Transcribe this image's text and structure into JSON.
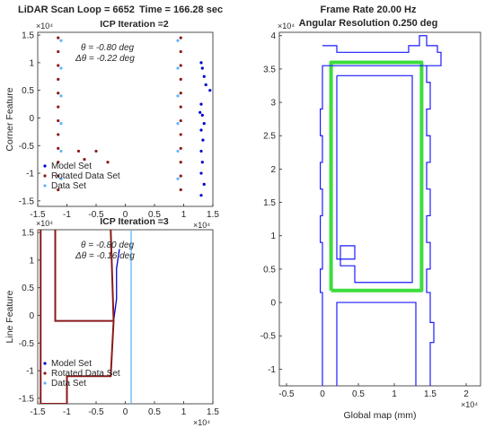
{
  "header": {
    "loop_text": "LiDAR Scan Loop = 6652",
    "time_text": "Time = 166.28 sec",
    "frame_rate_text": "Frame Rate 20.00 Hz",
    "angular_res_text": "Angular Resolution 0.250 deg"
  },
  "chart_data": [
    {
      "type": "scatter",
      "panel": "corner",
      "title": "ICP Iteration =2",
      "ylabel": "Corner Feature",
      "xlabel": "",
      "exponent_label": "×10⁴",
      "x_exponent_label": "×10⁴",
      "annotation_theta": "θ = -0.80 deg",
      "annotation_dtheta": "Δθ = -0.22 deg",
      "xlim": [
        -1.5,
        1.5
      ],
      "ylim": [
        -1.6,
        1.55
      ],
      "xticks": [
        "-1.5",
        "-1",
        "-0.5",
        "0",
        "0.5",
        "1",
        "1.5"
      ],
      "yticks": [
        "-1.5",
        "-1",
        "-0.5",
        "0",
        "0.5",
        "1",
        "1.5"
      ],
      "legend_position": "bottom-left",
      "legend": [
        {
          "name": "Model Set",
          "color": "#0000cc"
        },
        {
          "name": "Rotated Data Set",
          "color": "#8b1a1a"
        },
        {
          "name": "Data Set",
          "color": "#5fb4ff"
        }
      ],
      "series": [
        {
          "name": "Model Set",
          "color": "#0000cc",
          "points": [
            [
              1.3,
              1.0
            ],
            [
              1.32,
              0.9
            ],
            [
              1.35,
              0.75
            ],
            [
              1.38,
              0.6
            ],
            [
              1.45,
              0.5
            ],
            [
              1.3,
              0.25
            ],
            [
              1.28,
              0.1
            ],
            [
              1.32,
              0.05
            ],
            [
              1.35,
              -0.1
            ],
            [
              1.3,
              -0.22
            ],
            [
              1.33,
              -0.4
            ],
            [
              1.3,
              -0.6
            ],
            [
              1.32,
              -0.8
            ],
            [
              1.3,
              -1.0
            ],
            [
              1.35,
              -1.2
            ],
            [
              1.3,
              -1.4
            ]
          ]
        },
        {
          "name": "Rotated Data Set",
          "color": "#8b1a1a",
          "points": [
            [
              -1.15,
              1.45
            ],
            [
              -1.15,
              1.2
            ],
            [
              -1.15,
              0.95
            ],
            [
              -1.15,
              0.7
            ],
            [
              -1.15,
              0.45
            ],
            [
              -1.15,
              0.2
            ],
            [
              -1.15,
              -0.05
            ],
            [
              -1.15,
              -0.3
            ],
            [
              -1.15,
              -0.55
            ],
            [
              -1.15,
              -0.8
            ],
            [
              -1.15,
              -1.05
            ],
            [
              -1.15,
              -1.3
            ],
            [
              0.95,
              1.45
            ],
            [
              0.95,
              1.2
            ],
            [
              0.95,
              0.95
            ],
            [
              0.95,
              0.7
            ],
            [
              0.95,
              0.45
            ],
            [
              0.95,
              0.2
            ],
            [
              0.95,
              -0.05
            ],
            [
              0.95,
              -0.3
            ],
            [
              0.95,
              -0.55
            ],
            [
              0.95,
              -0.8
            ],
            [
              0.95,
              -1.05
            ],
            [
              0.95,
              -1.3
            ],
            [
              -0.8,
              -0.6
            ],
            [
              -0.7,
              -0.75
            ],
            [
              -0.5,
              -0.6
            ],
            [
              -0.3,
              -0.8
            ]
          ]
        },
        {
          "name": "Data Set",
          "color": "#5fb4ff",
          "points": [
            [
              -1.1,
              1.4
            ],
            [
              -1.1,
              0.9
            ],
            [
              -1.1,
              0.4
            ],
            [
              -1.1,
              -0.1
            ],
            [
              -1.1,
              -0.6
            ],
            [
              -1.1,
              -1.1
            ],
            [
              0.9,
              1.4
            ],
            [
              0.9,
              0.9
            ],
            [
              0.9,
              0.4
            ],
            [
              0.9,
              -0.1
            ],
            [
              0.9,
              -0.6
            ],
            [
              0.9,
              -1.1
            ]
          ]
        }
      ]
    },
    {
      "type": "line",
      "panel": "line",
      "title": "ICP Iteration =3",
      "ylabel": "Line Feature",
      "xlabel": "",
      "exponent_label": "×10⁴",
      "x_exponent_label": "×10⁴",
      "annotation_theta": "θ = -0.80 deg",
      "annotation_dtheta": "Δθ = -0.16 deg",
      "xlim": [
        -1.5,
        1.5
      ],
      "ylim": [
        -1.6,
        1.55
      ],
      "xticks": [
        "-1.5",
        "-1",
        "-0.5",
        "0",
        "0.5",
        "1",
        "1.5"
      ],
      "yticks": [
        "-1.5",
        "-1",
        "-0.5",
        "0",
        "0.5",
        "1",
        "1.5"
      ],
      "legend_position": "bottom-left",
      "legend": [
        {
          "name": "Model Set",
          "color": "#0000cc"
        },
        {
          "name": "Rotated Data Set",
          "color": "#8b1a1a"
        },
        {
          "name": "Data Set",
          "color": "#5fb4ff"
        }
      ],
      "series": [
        {
          "name": "Model Set",
          "color": "#0000cc",
          "points": [
            [
              -0.2,
              -0.1
            ],
            [
              -0.15,
              0.3
            ],
            [
              -0.15,
              0.85
            ],
            [
              -0.1,
              1.2
            ]
          ]
        },
        {
          "name": "Rotated Data Set",
          "color": "#8b1a1a",
          "points": [
            [
              -1.45,
              1.55
            ],
            [
              -1.45,
              -1.6
            ],
            [
              -1.0,
              -1.6
            ],
            [
              -1.0,
              -1.1
            ],
            [
              -0.25,
              -1.1
            ],
            [
              -0.2,
              -0.1
            ],
            [
              -0.25,
              1.55
            ]
          ]
        },
        {
          "name": "Rotated Data Set (right)",
          "color": "#8b1a1a",
          "points": [
            [
              -1.2,
              1.55
            ],
            [
              -1.2,
              -0.1
            ],
            [
              -0.2,
              -0.1
            ]
          ]
        },
        {
          "name": "Data Set",
          "color": "#5fb4ff",
          "points": [
            [
              0.1,
              1.55
            ],
            [
              0.1,
              -1.6
            ]
          ]
        }
      ]
    },
    {
      "type": "line",
      "panel": "map",
      "title": "Frame Rate 20.00 Hz",
      "subtitle": "Angular Resolution 0.250 deg",
      "xlabel": "Global map (mm)",
      "ylabel": "",
      "exponent_label": "×10⁴",
      "x_exponent_label": "×10⁴",
      "xlim": [
        -0.6,
        2.2
      ],
      "ylim": [
        -1.25,
        4.05
      ],
      "xticks": [
        "-0.5",
        "0",
        "0.5",
        "1",
        "1.5",
        "2"
      ],
      "xtick_values": [
        -0.5,
        0,
        0.5,
        1,
        1.5,
        2
      ],
      "yticks": [
        "-1",
        "-0.5",
        "0",
        "0.5",
        "1",
        "1.5",
        "2",
        "2.5",
        "3",
        "3.5",
        "4"
      ],
      "ytick_values": [
        -1,
        -0.5,
        0,
        0.5,
        1,
        1.5,
        2,
        2.5,
        3,
        3.5,
        4
      ],
      "series": [
        {
          "name": "building outline",
          "color": "#1a1aff",
          "points": [
            [
              0.0,
              -1.25
            ],
            [
              0.0,
              0.15
            ],
            [
              -0.03,
              0.15
            ],
            [
              -0.03,
              0.5
            ],
            [
              0.0,
              0.5
            ],
            [
              0.0,
              0.9
            ],
            [
              -0.03,
              0.9
            ],
            [
              -0.03,
              1.3
            ],
            [
              0.0,
              1.3
            ],
            [
              0.0,
              1.7
            ],
            [
              -0.03,
              1.7
            ],
            [
              -0.03,
              2.1
            ],
            [
              0.0,
              2.1
            ],
            [
              0.0,
              2.5
            ],
            [
              -0.03,
              2.5
            ],
            [
              -0.03,
              2.9
            ],
            [
              0.0,
              2.9
            ],
            [
              0.0,
              3.55
            ],
            [
              1.65,
              3.55
            ],
            [
              1.65,
              3.75
            ],
            [
              1.6,
              3.75
            ],
            [
              1.6,
              3.85
            ],
            [
              1.45,
              3.85
            ],
            [
              1.45,
              4.0
            ],
            [
              1.35,
              4.0
            ],
            [
              1.35,
              3.85
            ],
            [
              1.2,
              3.85
            ],
            [
              1.2,
              3.75
            ],
            [
              0.2,
              3.75
            ],
            [
              0.2,
              3.85
            ],
            [
              0.0,
              3.85
            ]
          ]
        },
        {
          "name": "outer right wall",
          "color": "#1a1aff",
          "points": [
            [
              1.45,
              3.55
            ],
            [
              1.45,
              3.3
            ],
            [
              1.5,
              3.3
            ],
            [
              1.5,
              2.9
            ],
            [
              1.45,
              2.9
            ],
            [
              1.45,
              2.5
            ],
            [
              1.5,
              2.5
            ],
            [
              1.5,
              2.1
            ],
            [
              1.45,
              2.1
            ],
            [
              1.45,
              1.7
            ],
            [
              1.5,
              1.7
            ],
            [
              1.5,
              1.3
            ],
            [
              1.45,
              1.3
            ],
            [
              1.45,
              0.9
            ],
            [
              1.5,
              0.9
            ],
            [
              1.5,
              0.5
            ],
            [
              1.45,
              0.5
            ],
            [
              1.45,
              0.15
            ],
            [
              1.5,
              0.15
            ],
            [
              1.5,
              -0.3
            ],
            [
              1.55,
              -0.3
            ],
            [
              1.55,
              -0.6
            ],
            [
              1.5,
              -0.6
            ],
            [
              1.5,
              -1.25
            ]
          ]
        },
        {
          "name": "inner room",
          "color": "#1a1aff",
          "points": [
            [
              0.2,
              3.4
            ],
            [
              1.25,
              3.4
            ],
            [
              1.25,
              0.3
            ],
            [
              0.45,
              0.3
            ],
            [
              0.45,
              0.55
            ],
            [
              0.25,
              0.55
            ],
            [
              0.25,
              0.85
            ],
            [
              0.45,
              0.85
            ],
            [
              0.45,
              0.65
            ],
            [
              0.2,
              0.65
            ],
            [
              0.2,
              3.4
            ]
          ]
        },
        {
          "name": "lower room",
          "color": "#1a1aff",
          "points": [
            [
              0.2,
              -1.25
            ],
            [
              0.2,
              0.0
            ],
            [
              1.3,
              0.0
            ],
            [
              1.3,
              -1.25
            ]
          ]
        }
      ],
      "path": {
        "name": "trajectory",
        "color": "#3ddc3d",
        "points": [
          [
            0.12,
            0.18
          ],
          [
            1.38,
            0.18
          ],
          [
            1.38,
            3.6
          ],
          [
            0.12,
            3.6
          ],
          [
            0.12,
            0.18
          ]
        ]
      }
    }
  ]
}
